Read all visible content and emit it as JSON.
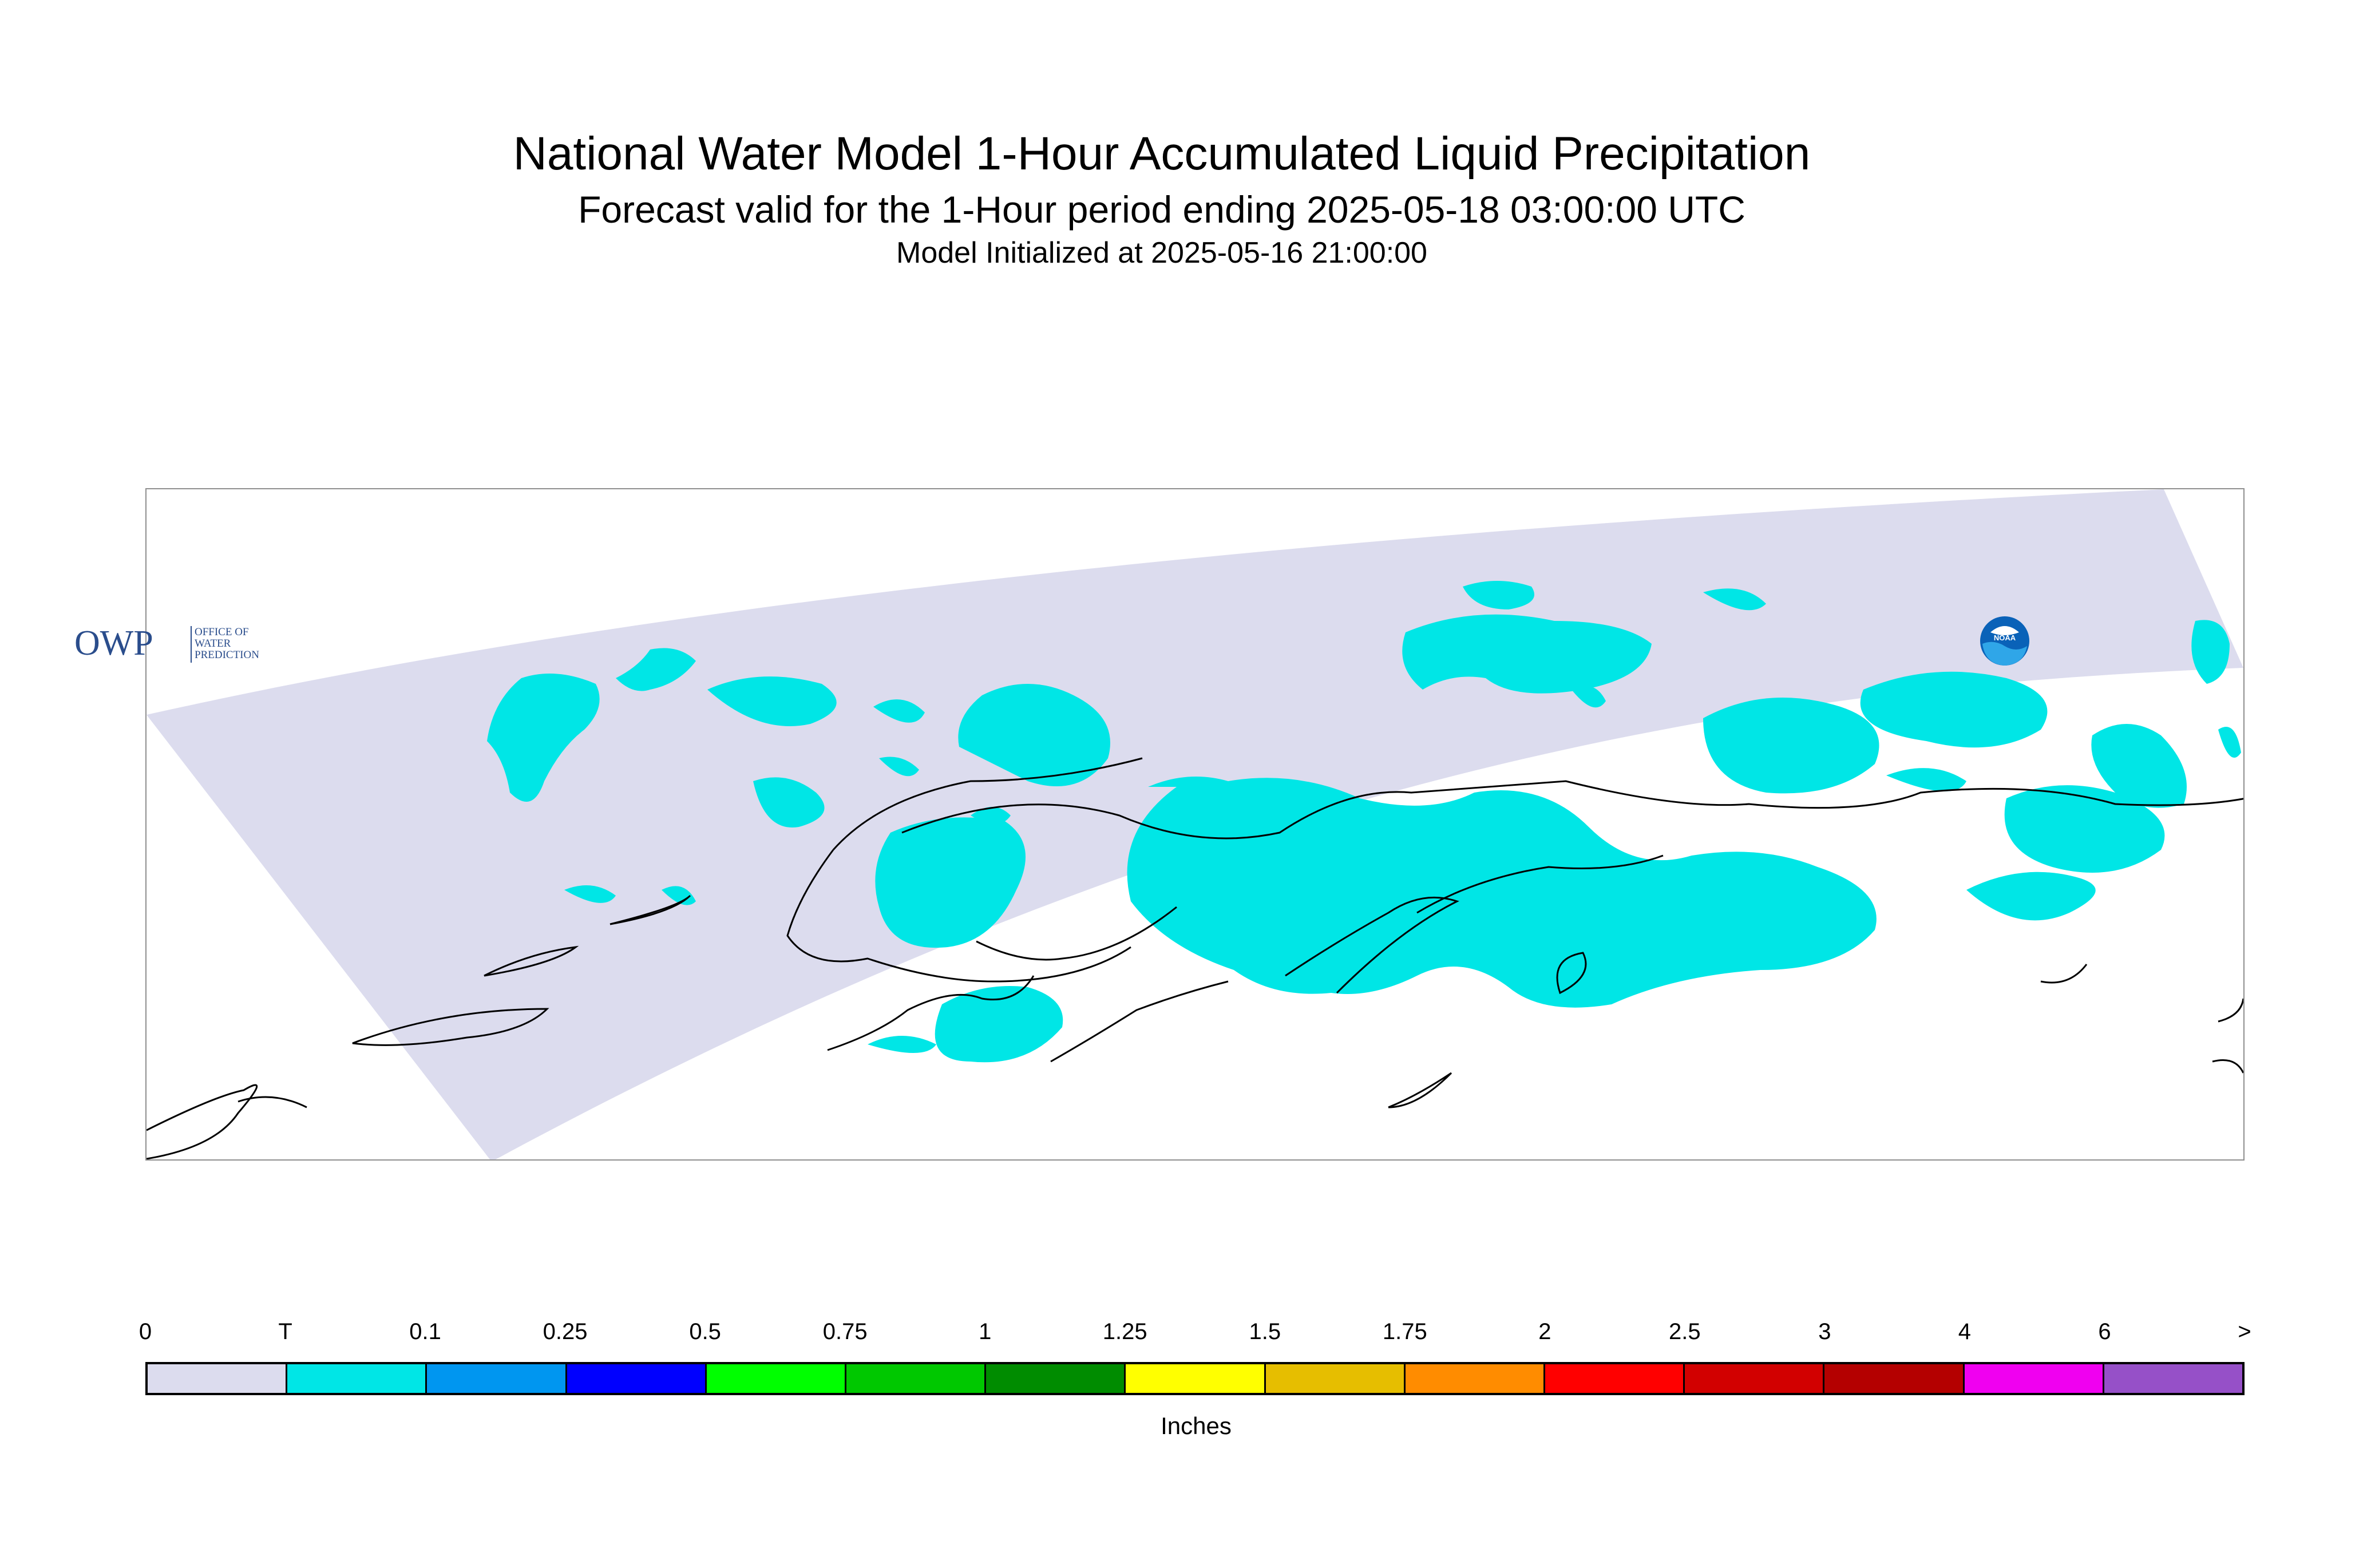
{
  "title": {
    "line1": "National Water Model 1-Hour Accumulated Liquid Precipitation",
    "line2": "Forecast valid for the 1-Hour period ending 2025-05-18 03:00:00 UTC",
    "line3": "Model Initialized at 2025-05-16 21:00:00"
  },
  "map": {
    "domain_color": "#dcdcee",
    "trace_color": "#00e6e6",
    "coastline_color": "#000000",
    "logos": {
      "owp": {
        "mark": "OWP",
        "text": [
          "OFFICE OF",
          "WATER",
          "PREDICTION"
        ]
      },
      "noaa": {
        "text": "NOAA"
      }
    }
  },
  "legend": {
    "labels": [
      "0",
      "T",
      "0.1",
      "0.25",
      "0.5",
      "0.75",
      "1",
      "1.25",
      "1.5",
      "1.75",
      "2",
      "2.5",
      "3",
      "4",
      "6",
      ">"
    ],
    "colors": [
      "#dcdcee",
      "#00e6e6",
      "#0096f0",
      "#0000ff",
      "#00ff00",
      "#00c800",
      "#008c00",
      "#ffff00",
      "#e6be00",
      "#ff8c00",
      "#ff0000",
      "#d20000",
      "#b40000",
      "#f000f0",
      "#9650c8"
    ],
    "units": "Inches"
  }
}
